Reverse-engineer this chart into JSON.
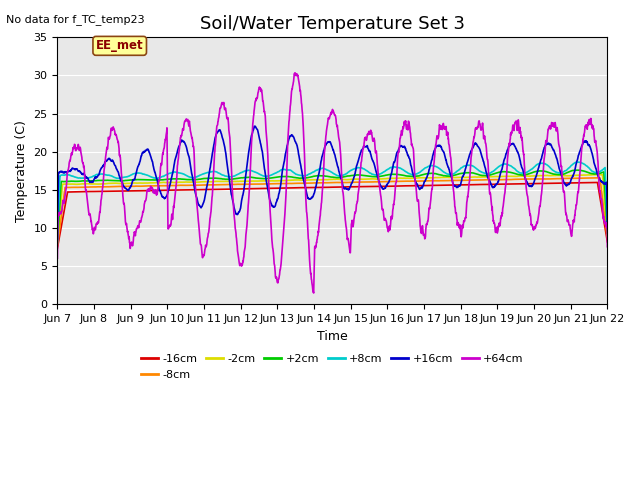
{
  "title": "Soil/Water Temperature Set 3",
  "xlabel": "Time",
  "ylabel": "Temperature (C)",
  "no_data_text": "No data for f_TC_temp23",
  "station_label": "EE_met",
  "ylim": [
    0,
    35
  ],
  "yticks": [
    0,
    5,
    10,
    15,
    20,
    25,
    30,
    35
  ],
  "x_tick_labels": [
    "Jun 7",
    "Jun 8",
    "Jun 9",
    "Jun 10",
    "Jun 11",
    "Jun 12",
    "Jun 13",
    "Jun 14",
    "Jun 15",
    "Jun 16",
    "Jun 17",
    "Jun 18",
    "Jun 19",
    "Jun 20",
    "Jun 21",
    "Jun 22"
  ],
  "series_colors": {
    "-16cm": "#dd0000",
    "-8cm": "#ff8800",
    "-2cm": "#dddd00",
    "+2cm": "#00cc00",
    "+8cm": "#00cccc",
    "+16cm": "#0000cc",
    "+64cm": "#cc00cc"
  },
  "background_color": "#e8e8e8",
  "title_fontsize": 13,
  "axis_fontsize": 9,
  "tick_fontsize": 8
}
